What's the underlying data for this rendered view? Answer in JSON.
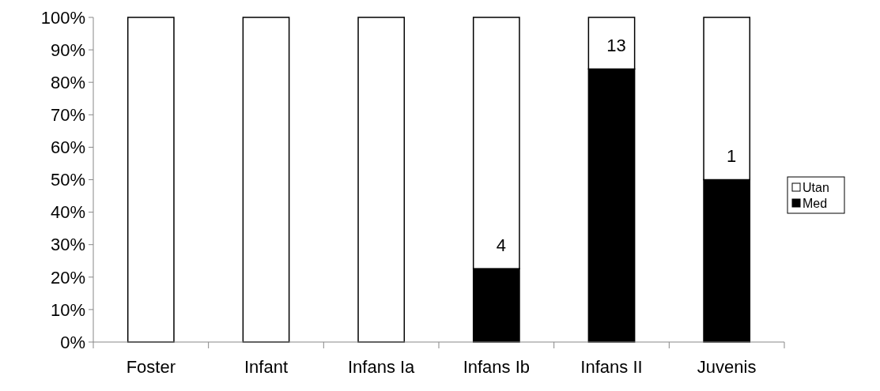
{
  "chart_data": {
    "type": "bar",
    "stacked": true,
    "categories": [
      "Foster",
      "Infant",
      "Infans Ia",
      "Infans Ib",
      "Infans II",
      "Juvenis"
    ],
    "series": [
      {
        "name": "Med",
        "color": "#000000",
        "values": [
          0,
          0,
          0,
          22.6,
          84.1,
          50
        ]
      },
      {
        "name": "Utan",
        "color": "#ffffff",
        "values": [
          100,
          100,
          100,
          77.4,
          15.9,
          50
        ]
      }
    ],
    "annotations": [
      "4",
      "13",
      "1"
    ],
    "ylim": [
      0,
      100
    ],
    "yticks": [
      {
        "value": 0,
        "label": "0%"
      },
      {
        "value": 10,
        "label": "10%"
      },
      {
        "value": 20,
        "label": "20%"
      },
      {
        "value": 30,
        "label": "30%"
      },
      {
        "value": 40,
        "label": "40%"
      },
      {
        "value": 50,
        "label": "50%"
      },
      {
        "value": 60,
        "label": "60%"
      },
      {
        "value": 70,
        "label": "70%"
      },
      {
        "value": 80,
        "label": "80%"
      },
      {
        "value": 90,
        "label": "90%"
      },
      {
        "value": 100,
        "label": "100%"
      }
    ],
    "legend": "right",
    "grid": false
  }
}
